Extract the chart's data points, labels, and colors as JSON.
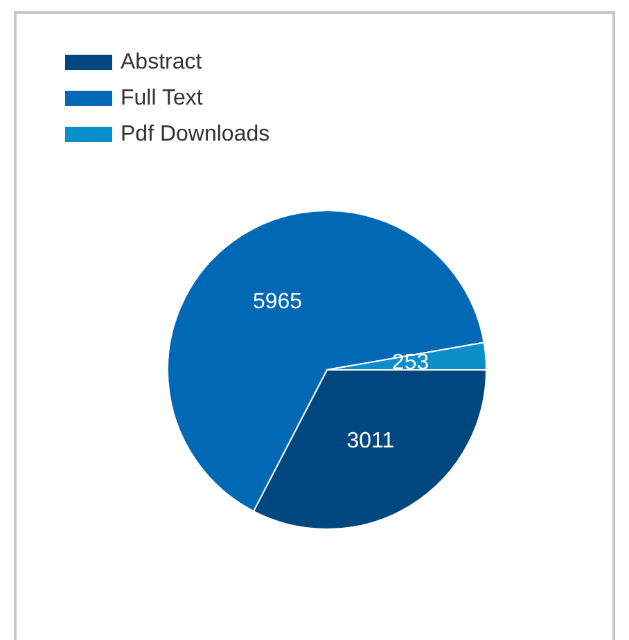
{
  "chart_data": {
    "type": "pie",
    "categories": [
      "Abstract",
      "Full Text",
      "Pdf Downloads"
    ],
    "values": [
      3011,
      5965,
      253
    ],
    "colors": [
      "#00477f",
      "#0068b4",
      "#0a8fc8"
    ],
    "data_labels": true,
    "legend": "top left"
  }
}
